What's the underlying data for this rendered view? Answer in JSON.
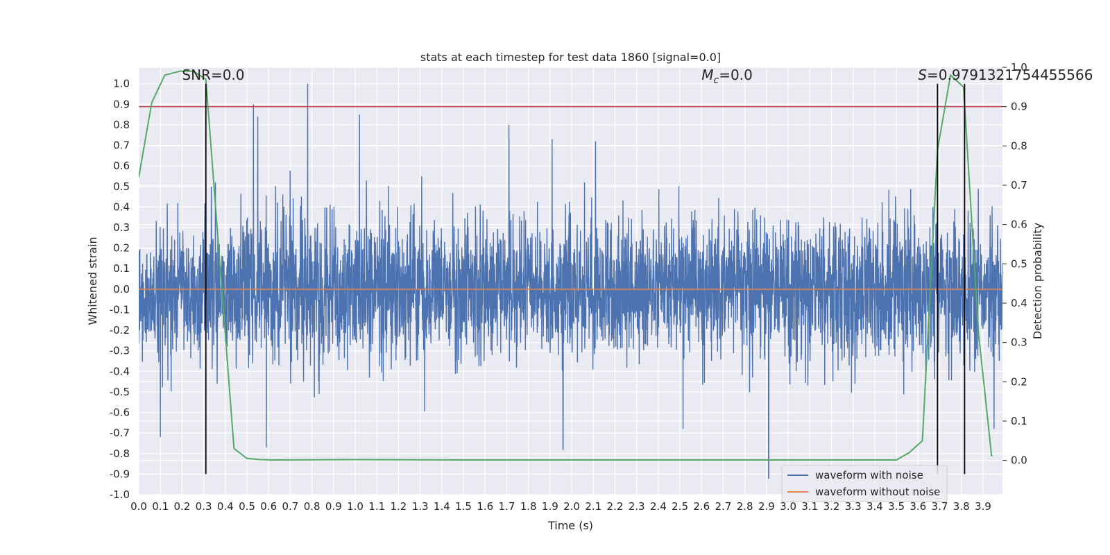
{
  "chart_data": {
    "type": "line",
    "title": "stats at each timestep for test data 1860 [signal=0.0]",
    "xlabel": "Time (s)",
    "ylabel": "Whitened strain",
    "y2label": "Detection probability",
    "xlim": [
      0.0,
      3.99
    ],
    "ylim": [
      -1.0,
      1.08
    ],
    "y2lim": [
      -0.0872,
      1.0
    ],
    "x_ticks": [
      0.0,
      0.1,
      0.2,
      0.3,
      0.4,
      0.5,
      0.6,
      0.7,
      0.8,
      0.9,
      1.0,
      1.1,
      1.2,
      1.3,
      1.4,
      1.5,
      1.6,
      1.7,
      1.8,
      1.9,
      2.0,
      2.1,
      2.2,
      2.3,
      2.4,
      2.5,
      2.6,
      2.7,
      2.8,
      2.9,
      3.0,
      3.1,
      3.2,
      3.3,
      3.4,
      3.5,
      3.6,
      3.7,
      3.8,
      3.9
    ],
    "y_ticks": [
      -1.0,
      -0.9,
      -0.8,
      -0.7,
      -0.6,
      -0.5,
      -0.4,
      -0.3,
      -0.2,
      -0.1,
      0.0,
      0.1,
      0.2,
      0.3,
      0.4,
      0.5,
      0.6,
      0.7,
      0.8,
      0.9,
      1.0
    ],
    "y2_ticks": [
      0.0,
      0.1,
      0.2,
      0.3,
      0.4,
      0.5,
      0.6,
      0.7,
      0.8,
      0.9,
      1.0
    ],
    "grid": true,
    "legend_position": "lower-right",
    "annotations": {
      "snr": "SNR=0.0",
      "mc_symbol": "M",
      "mc_sub": "c",
      "mc_value": "=0.0",
      "s_symbol": "S",
      "s_value": "=0.9791321754455566"
    },
    "series": [
      {
        "name": "waveform with noise",
        "color": "#4c72b0",
        "axis": "left",
        "description_values": "dense whitened noise, approx amplitude range -0.92 to 1.0",
        "peaks": [
          {
            "x": 0.78,
            "y": 1.0
          },
          {
            "x": 0.53,
            "y": 0.9
          },
          {
            "x": 1.02,
            "y": 0.85
          },
          {
            "x": 0.55,
            "y": 0.84
          },
          {
            "x": 1.71,
            "y": 0.8
          },
          {
            "x": 1.91,
            "y": 0.73
          },
          {
            "x": 2.11,
            "y": 0.72
          },
          {
            "x": 2.91,
            "y": -0.92
          },
          {
            "x": 1.96,
            "y": -0.78
          },
          {
            "x": 0.59,
            "y": -0.77
          },
          {
            "x": 0.1,
            "y": -0.72
          }
        ]
      },
      {
        "name": "waveform without noise",
        "color": "#dd8452",
        "axis": "left",
        "x": [
          0.0,
          3.99
        ],
        "y": [
          0.0,
          0.0
        ]
      },
      {
        "name": "",
        "color": "#55a868",
        "axis": "right",
        "x": [
          0.0,
          0.06,
          0.12,
          0.19,
          0.25,
          0.31,
          0.44,
          0.5,
          0.56,
          0.62,
          1.0,
          1.5,
          2.0,
          2.5,
          2.9,
          3.0,
          3.5,
          3.56,
          3.62,
          3.69,
          3.75,
          3.81,
          3.88,
          3.94
        ],
        "y": [
          0.72,
          0.91,
          0.98,
          0.99,
          0.99,
          0.97,
          0.03,
          0.005,
          0.002,
          0.001,
          0.002,
          0.001,
          0.001,
          0.001,
          0.001,
          0.001,
          0.001,
          0.02,
          0.05,
          0.79,
          0.98,
          0.95,
          0.32,
          0.01
        ]
      }
    ],
    "hlines": [
      {
        "y2": 0.9,
        "color": "#c44e52"
      }
    ],
    "vlines": [
      {
        "x": 0.31,
        "color": "#000000"
      },
      {
        "x": 3.69,
        "color": "#000000"
      },
      {
        "x": 3.815,
        "color": "#000000"
      }
    ]
  }
}
